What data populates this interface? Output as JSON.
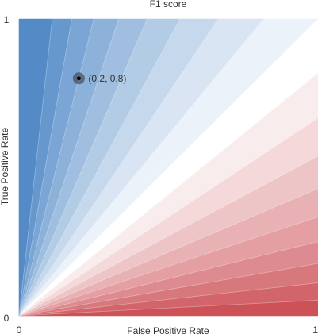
{
  "chart_data": {
    "type": "heatmap",
    "title": "F1 score",
    "xlabel": "False Positive Rate",
    "ylabel": "True Positive Rate",
    "xlim": [
      0,
      1
    ],
    "ylim": [
      0,
      1
    ],
    "x_tick_labels": [
      "0",
      "1"
    ],
    "y_tick_labels": [
      "0",
      "1"
    ],
    "grid": false,
    "contour_slopes": [
      0.0526,
      0.1111,
      0.1765,
      0.25,
      0.3333,
      0.4286,
      0.5385,
      0.6667,
      0.8182,
      1.0,
      1.2222,
      1.5,
      1.8571,
      2.3333,
      3.0,
      4.0,
      5.6667,
      9.0
    ],
    "color_low": "#c9484f",
    "color_mid": "#ffffff",
    "color_high": "#4a85c4",
    "highlight_point": {
      "x": 0.2,
      "y": 0.8,
      "label": "(0.2, 0.8)"
    }
  }
}
